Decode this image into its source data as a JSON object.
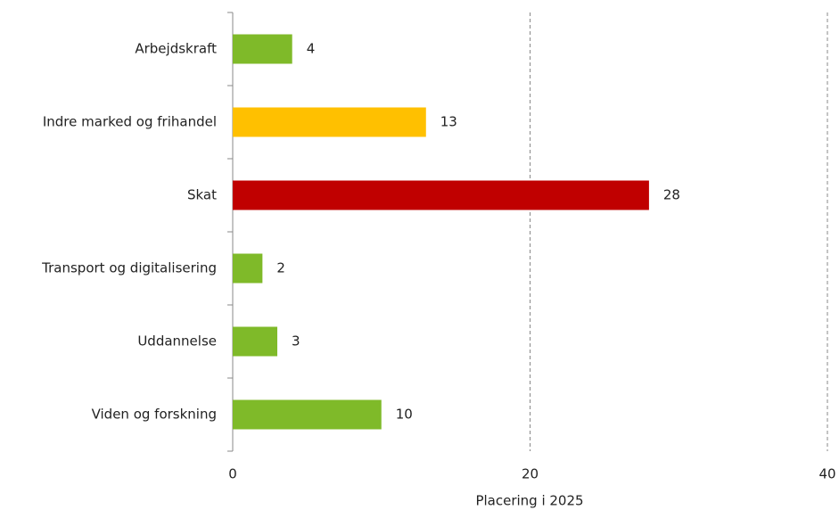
{
  "chart_data": {
    "type": "bar",
    "orientation": "horizontal",
    "categories": [
      "Arbejdskraft",
      "Indre marked og frihandel",
      "Skat",
      "Transport og digitalisering",
      "Uddannelse",
      "Viden og forskning"
    ],
    "values": [
      4,
      13,
      28,
      2,
      3,
      10
    ],
    "colors": [
      "#7fba29",
      "#ffc000",
      "#c00000",
      "#7fba29",
      "#7fba29",
      "#7fba29"
    ],
    "xlabel": "Placering i 2025",
    "xlim": [
      0,
      40
    ],
    "xticks": [
      0,
      20,
      40
    ],
    "grid": true
  }
}
